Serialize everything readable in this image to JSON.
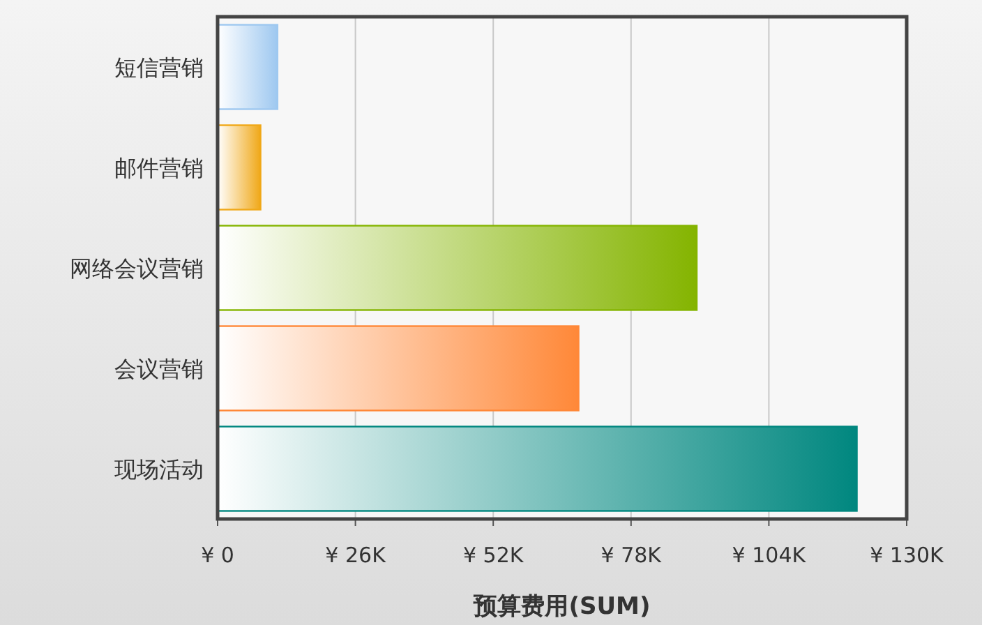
{
  "chart_data": {
    "type": "bar",
    "orientation": "horizontal",
    "xlabel": "预算费用(SUM)",
    "categories": [
      "短信营销",
      "邮件营销",
      "网络会议营销",
      "会议营销",
      "现场活动"
    ],
    "values": [
      11300,
      8100,
      90400,
      68100,
      120600
    ],
    "colors": [
      "#9ec8f0",
      "#f0a818",
      "#84b400",
      "#ff8838",
      "#00877f"
    ],
    "xlim": [
      0,
      130000
    ],
    "xticks": [
      {
        "value": 0,
        "label": "¥ 0"
      },
      {
        "value": 26000,
        "label": "¥ 26K"
      },
      {
        "value": 52000,
        "label": "¥ 52K"
      },
      {
        "value": 78000,
        "label": "¥ 78K"
      },
      {
        "value": 104000,
        "label": "¥ 104K"
      },
      {
        "value": 130000,
        "label": "¥ 130K"
      }
    ],
    "grid": "x"
  }
}
